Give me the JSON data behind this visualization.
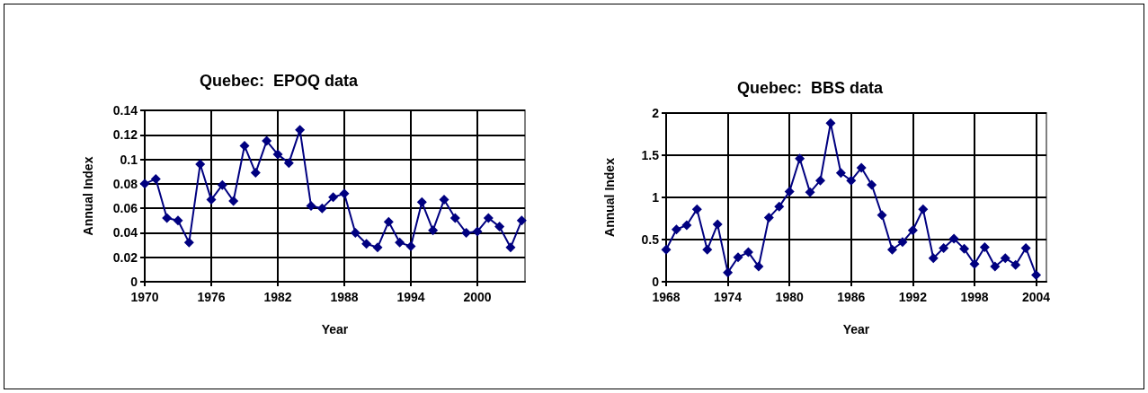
{
  "chart_data": [
    {
      "type": "line",
      "title": "Quebec:  EPOQ data",
      "xlabel": "Year",
      "ylabel": "Annual Index",
      "x": [
        1970,
        1971,
        1972,
        1973,
        1974,
        1975,
        1976,
        1977,
        1978,
        1979,
        1980,
        1981,
        1982,
        1983,
        1984,
        1985,
        1986,
        1987,
        1988,
        1989,
        1990,
        1991,
        1992,
        1993,
        1994,
        1995,
        1996,
        1997,
        1998,
        1999,
        2000,
        2001,
        2002,
        2003,
        2004
      ],
      "series": [
        {
          "color": "#000080",
          "values": [
            0.08,
            0.084,
            0.052,
            0.05,
            0.032,
            0.096,
            0.067,
            0.079,
            0.066,
            0.111,
            0.089,
            0.115,
            0.104,
            0.097,
            0.124,
            0.062,
            0.06,
            0.069,
            0.072,
            0.04,
            0.031,
            0.028,
            0.049,
            0.032,
            0.029,
            0.065,
            0.042,
            0.067,
            0.052,
            0.04,
            0.041,
            0.052,
            0.045,
            0.028,
            0.05
          ]
        }
      ],
      "xlim": [
        1970,
        2004.3
      ],
      "xticks": [
        1970,
        1976,
        1982,
        1988,
        1994,
        2000
      ],
      "ylim": [
        0,
        0.14
      ],
      "yticks": [
        0,
        0.02,
        0.04,
        0.06,
        0.08,
        0.1,
        0.12,
        0.14
      ],
      "grid": true,
      "marker": "diamond",
      "line_style": "solid"
    },
    {
      "type": "line",
      "title": "Quebec:  BBS data",
      "xlabel": "Year",
      "ylabel": "Annual Index",
      "x": [
        1968,
        1969,
        1970,
        1971,
        1972,
        1973,
        1974,
        1975,
        1976,
        1977,
        1978,
        1979,
        1980,
        1981,
        1982,
        1983,
        1984,
        1985,
        1986,
        1987,
        1988,
        1989,
        1990,
        1991,
        1992,
        1993,
        1994,
        1995,
        1996,
        1997,
        1998,
        1999,
        2000,
        2001,
        2002,
        2003,
        2004
      ],
      "series": [
        {
          "color": "#000080",
          "values": [
            0.38,
            0.62,
            0.67,
            0.86,
            0.38,
            0.68,
            0.11,
            0.29,
            0.35,
            0.18,
            0.76,
            0.89,
            1.07,
            1.46,
            1.06,
            1.2,
            1.88,
            1.29,
            1.2,
            1.35,
            1.15,
            0.79,
            0.38,
            0.47,
            0.61,
            0.86,
            0.28,
            0.4,
            0.51,
            0.39,
            0.21,
            0.41,
            0.18,
            0.28,
            0.2,
            0.4,
            0.08
          ]
        }
      ],
      "xlim": [
        1968,
        2005
      ],
      "xticks": [
        1968,
        1974,
        1980,
        1986,
        1992,
        1998,
        2004
      ],
      "ylim": [
        0,
        2
      ],
      "yticks": [
        0,
        0.5,
        1,
        1.5,
        2
      ],
      "grid": true,
      "marker": "diamond",
      "line_style": "solid"
    }
  ]
}
